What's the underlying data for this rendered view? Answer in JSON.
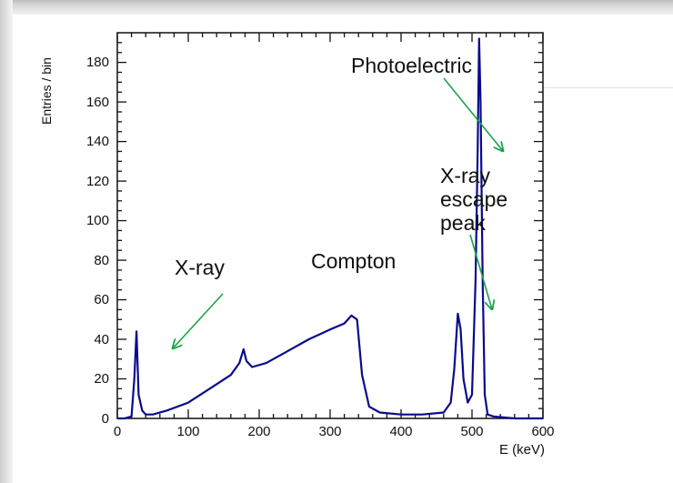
{
  "chart_data": {
    "type": "line",
    "ylabel": "Entries / bin",
    "xlabel": "E (keV)",
    "xlim": [
      0,
      600
    ],
    "ylim": [
      0,
      195
    ],
    "xticks": [
      "0",
      "100",
      "200",
      "300",
      "400",
      "500",
      "600"
    ],
    "yticks": [
      "0",
      "20",
      "40",
      "60",
      "80",
      "100",
      "120",
      "140",
      "160",
      "180"
    ],
    "grid": false,
    "colors": {
      "series": "#0a0a8c",
      "annotation": "#1aa34a",
      "text": "#111111"
    },
    "series": [
      {
        "x": [
          0,
          10,
          20,
          24,
          27,
          30,
          35,
          40,
          50,
          70,
          100,
          130,
          160,
          172,
          178,
          182,
          190,
          210,
          240,
          270,
          300,
          320,
          330,
          338,
          345,
          355,
          370,
          400,
          430,
          460,
          470,
          475,
          480,
          484,
          488,
          494,
          500,
          505,
          508,
          510,
          512,
          515,
          518,
          522,
          530,
          560,
          600
        ],
        "y": [
          0,
          0,
          1,
          20,
          44,
          12,
          4,
          2,
          2,
          4,
          8,
          15,
          22,
          28,
          35,
          29,
          26,
          28,
          34,
          40,
          45,
          48,
          52,
          50,
          22,
          6,
          3,
          2,
          2,
          3,
          8,
          25,
          53,
          45,
          20,
          8,
          12,
          70,
          135,
          192,
          160,
          70,
          12,
          2,
          1,
          0,
          0
        ]
      }
    ],
    "annotations": [
      {
        "text": "Photoelectric",
        "target": [
          512,
          140
        ]
      },
      {
        "text": "X-ray escape peak",
        "lines": [
          "X-ray",
          "escape",
          "peak"
        ],
        "target": [
          505,
          55
        ]
      },
      {
        "text": "Compton"
      },
      {
        "text": "X-ray",
        "target": [
          60,
          35
        ]
      }
    ]
  }
}
